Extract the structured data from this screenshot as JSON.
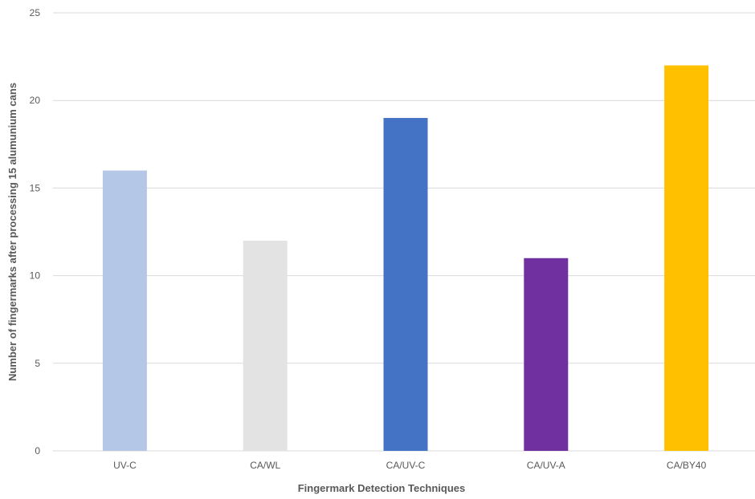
{
  "chart_data": {
    "type": "bar",
    "categories": [
      "UV-C",
      "CA/WL",
      "CA/UV-C",
      "CA/UV-A",
      "CA/BY40"
    ],
    "values": [
      16,
      12,
      19,
      11,
      22
    ],
    "colors": [
      "#b4c7e7",
      "#e3e3e3",
      "#4472c4",
      "#7030a0",
      "#ffc000"
    ],
    "title": "",
    "xlabel": "Fingermark Detection Techniques",
    "ylabel": "Number of fingermarks after processing 15 alumunium cans",
    "ylim": [
      0,
      25
    ],
    "yticks": [
      0,
      5,
      10,
      15,
      20,
      25
    ],
    "grid": true,
    "gridline_color": "#d9d9d9",
    "axis_text_color": "#595959"
  }
}
